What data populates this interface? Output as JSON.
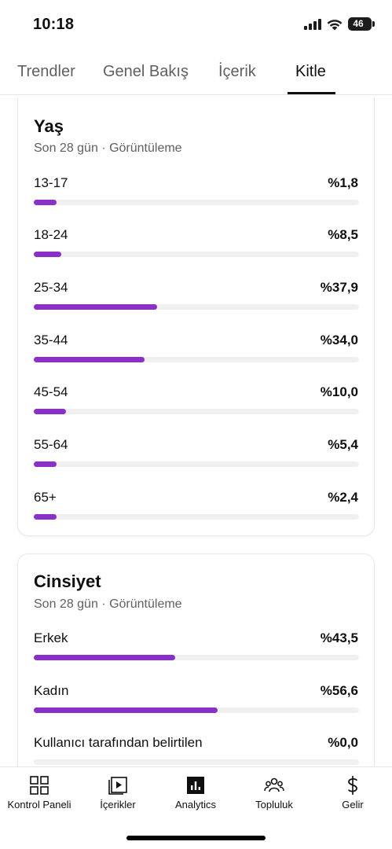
{
  "status": {
    "time": "10:18",
    "battery": "46"
  },
  "tabs": [
    {
      "label": "Trendler",
      "active": false
    },
    {
      "label": "Genel Bakış",
      "active": false
    },
    {
      "label": "İçerik",
      "active": false
    },
    {
      "label": "Kitle",
      "active": true
    }
  ],
  "age_card": {
    "title": "Yaş",
    "subtitle": "Son 28 gün · Görüntüleme",
    "rows": [
      {
        "label": "13-17",
        "value": "%1,8",
        "percent": 1.8
      },
      {
        "label": "18-24",
        "value": "%8,5",
        "percent": 8.5
      },
      {
        "label": "25-34",
        "value": "%37,9",
        "percent": 37.9
      },
      {
        "label": "35-44",
        "value": "%34,0",
        "percent": 34.0
      },
      {
        "label": "45-54",
        "value": "%10,0",
        "percent": 10.0
      },
      {
        "label": "55-64",
        "value": "%5,4",
        "percent": 5.4
      },
      {
        "label": "65+",
        "value": "%2,4",
        "percent": 2.4
      }
    ]
  },
  "gender_card": {
    "title": "Cinsiyet",
    "subtitle": "Son 28 gün · Görüntüleme",
    "rows": [
      {
        "label": "Erkek",
        "value": "%43,5",
        "percent": 43.5
      },
      {
        "label": "Kadın",
        "value": "%56,6",
        "percent": 56.6
      },
      {
        "label": "Kullanıcı tarafından belirtilen",
        "value": "%0,0",
        "percent": 0.0
      }
    ]
  },
  "bottom_nav": [
    {
      "label": "Kontrol Paneli",
      "icon": "dashboard-icon"
    },
    {
      "label": "İçerikler",
      "icon": "content-icon"
    },
    {
      "label": "Analytics",
      "icon": "analytics-icon"
    },
    {
      "label": "Topluluk",
      "icon": "community-icon"
    },
    {
      "label": "Gelir",
      "icon": "dollar-icon"
    }
  ],
  "colors": {
    "bar_fill": "#8b2fc9",
    "bar_track": "#f0f0f0"
  }
}
